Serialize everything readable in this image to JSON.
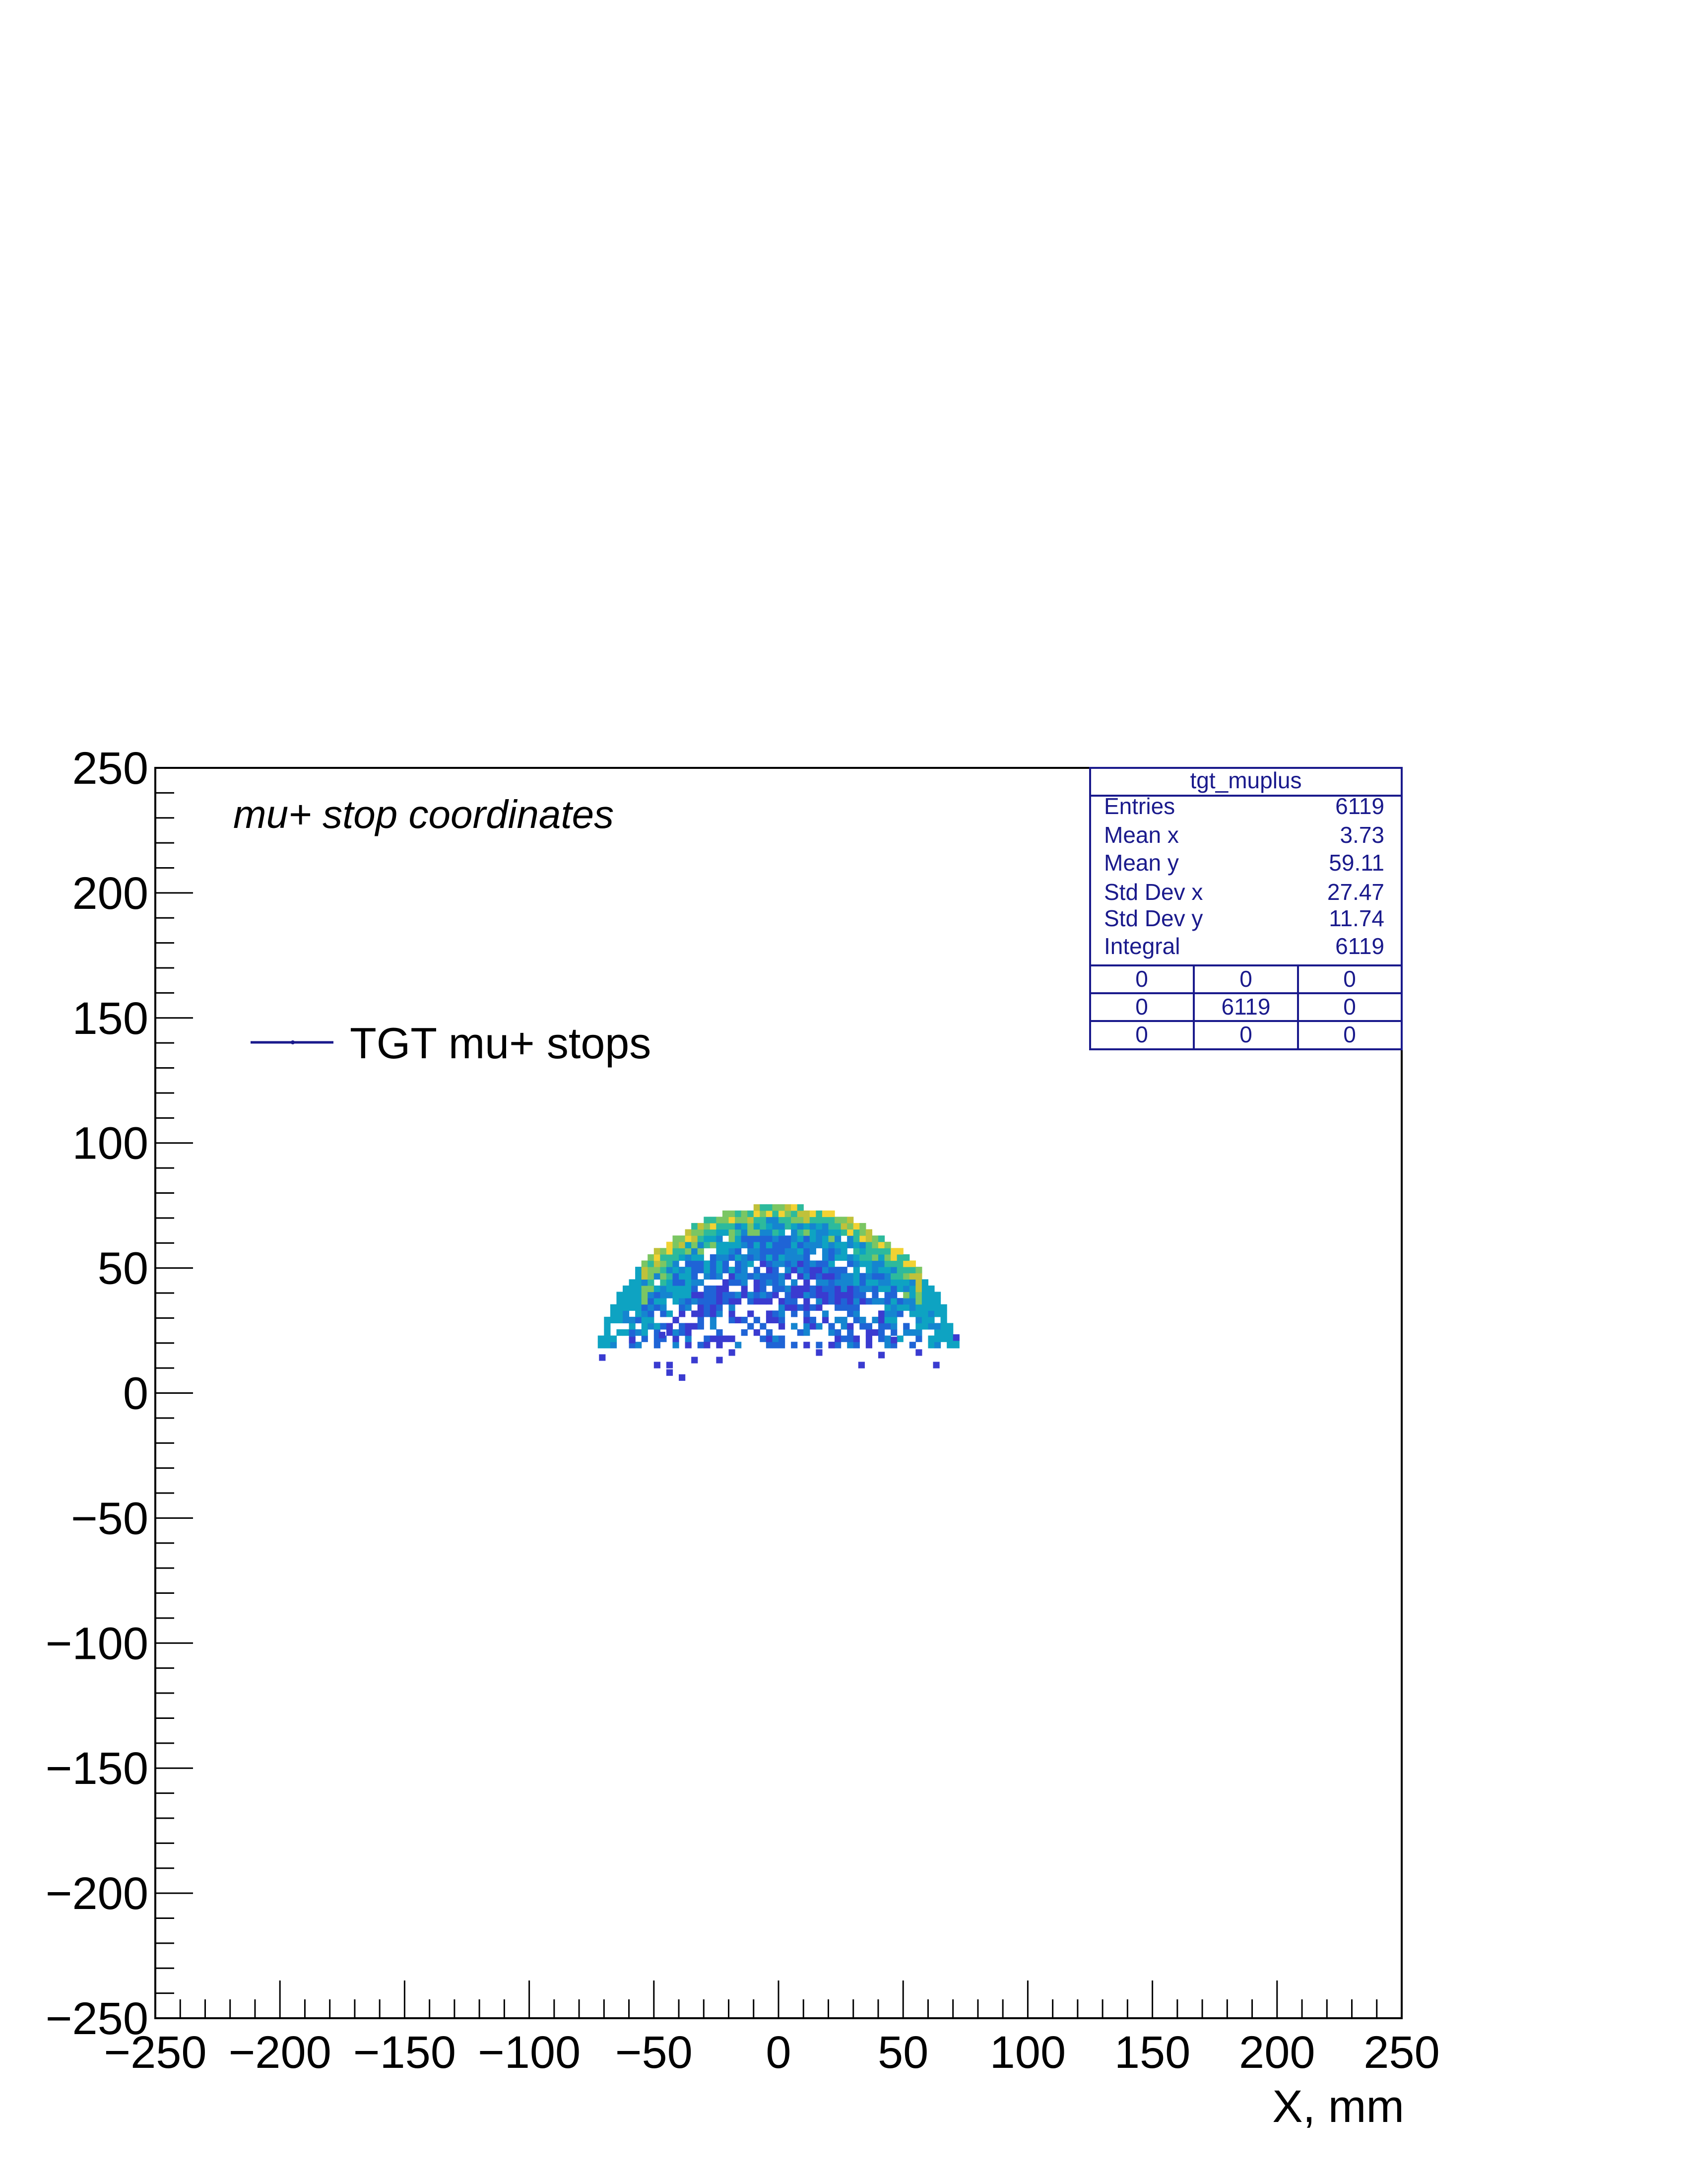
{
  "chart_data": {
    "type": "heatmap",
    "title": "mu+ stop coordinates",
    "xlabel": "X, mm",
    "ylabel": "",
    "xlim": [
      -250,
      250
    ],
    "ylim": [
      -250,
      250
    ],
    "x_ticks": [
      "−250",
      "−200",
      "−150",
      "−100",
      "−50",
      "0",
      "50",
      "100",
      "150",
      "200",
      "250"
    ],
    "y_ticks": [
      "250",
      "200",
      "150",
      "100",
      "50",
      "0",
      "−50",
      "−100",
      "−150",
      "−200",
      "−250"
    ],
    "tick_values": [
      -250,
      -200,
      -150,
      -100,
      -50,
      0,
      50,
      100,
      150,
      200,
      250
    ],
    "bin_width": 2.5,
    "legend": {
      "label": "TGT mu+ stops",
      "position": "top-left",
      "color": "#1a1a8c"
    },
    "stats": {
      "name": "tgt_muplus",
      "rows": [
        {
          "label": "Entries",
          "value": "6119"
        },
        {
          "label": "Mean x",
          "value": "3.73"
        },
        {
          "label": "Mean y",
          "value": "59.11"
        },
        {
          "label": "Std Dev x",
          "value": "27.47"
        },
        {
          "label": "Std Dev y",
          "value": "11.74"
        },
        {
          "label": "Integral",
          "value": "6119"
        }
      ],
      "grid": [
        [
          "0",
          "0",
          "0"
        ],
        [
          "0",
          "6119",
          "0"
        ],
        [
          "0",
          "0",
          "0"
        ]
      ]
    },
    "distribution": {
      "shape": "dome",
      "center_x": 3.73,
      "dome_radius": 75,
      "dome_center_y": 0,
      "y_min": 18,
      "y_max": 75,
      "sparse_points": [
        [
          -72,
          13
        ],
        [
          -50,
          10
        ],
        [
          -45,
          7
        ],
        [
          -40,
          5
        ],
        [
          -45,
          10
        ],
        [
          -35,
          12
        ],
        [
          -25,
          12
        ],
        [
          -20,
          15
        ],
        [
          15,
          15
        ],
        [
          32,
          10
        ],
        [
          40,
          14
        ],
        [
          55,
          15
        ],
        [
          62,
          10
        ],
        [
          -60,
          20
        ],
        [
          -30,
          18
        ],
        [
          20,
          18
        ],
        [
          45,
          20
        ],
        [
          70,
          21
        ],
        [
          -48,
          22
        ]
      ],
      "colormap": [
        "#3a3bd0",
        "#1f64d6",
        "#1585d0",
        "#0ea3c2",
        "#2dba9c",
        "#7bc663",
        "#c0c13a",
        "#f2d233"
      ]
    }
  }
}
